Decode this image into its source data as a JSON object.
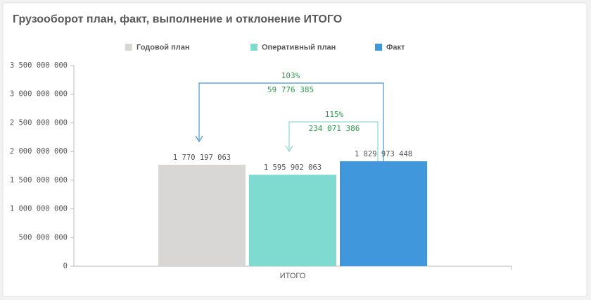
{
  "chart_data": {
    "type": "bar",
    "title": "Грузооборот план, факт, выполнение и отклонение ИТОГО",
    "categories": [
      "ИТОГО"
    ],
    "series": [
      {
        "name": "Годовой план",
        "color": "#d9d7d5",
        "values": [
          1770197063
        ],
        "value_labels": [
          "1 770 197 063"
        ]
      },
      {
        "name": "Оперативный план",
        "color": "#7fdbd0",
        "values": [
          1595902063
        ],
        "value_labels": [
          "1 595 902 063"
        ]
      },
      {
        "name": "Факт",
        "color": "#4097dc",
        "values": [
          1829973448
        ],
        "value_labels": [
          "1 829 973 448"
        ]
      }
    ],
    "ylim": [
      0,
      3500000000
    ],
    "yticks": [
      0,
      {
        "value": 500000000,
        "label": "500 000 000"
      },
      {
        "value": 1000000000,
        "label": "1 000 000 000"
      },
      {
        "value": 1500000000,
        "label": "1 500 000 000"
      },
      {
        "value": 2000000000,
        "label": "2 000 000 000"
      },
      {
        "value": 2500000000,
        "label": "2 500 000 000"
      },
      {
        "value": 3000000000,
        "label": "3 000 000 000"
      },
      {
        "value": 3500000000,
        "label": "3 500 000 000"
      }
    ],
    "legend": "top",
    "annotations": [
      {
        "percent": "103%",
        "difference": "59 776 385"
      },
      {
        "percent": "115%",
        "difference": "234 071 386"
      }
    ]
  }
}
